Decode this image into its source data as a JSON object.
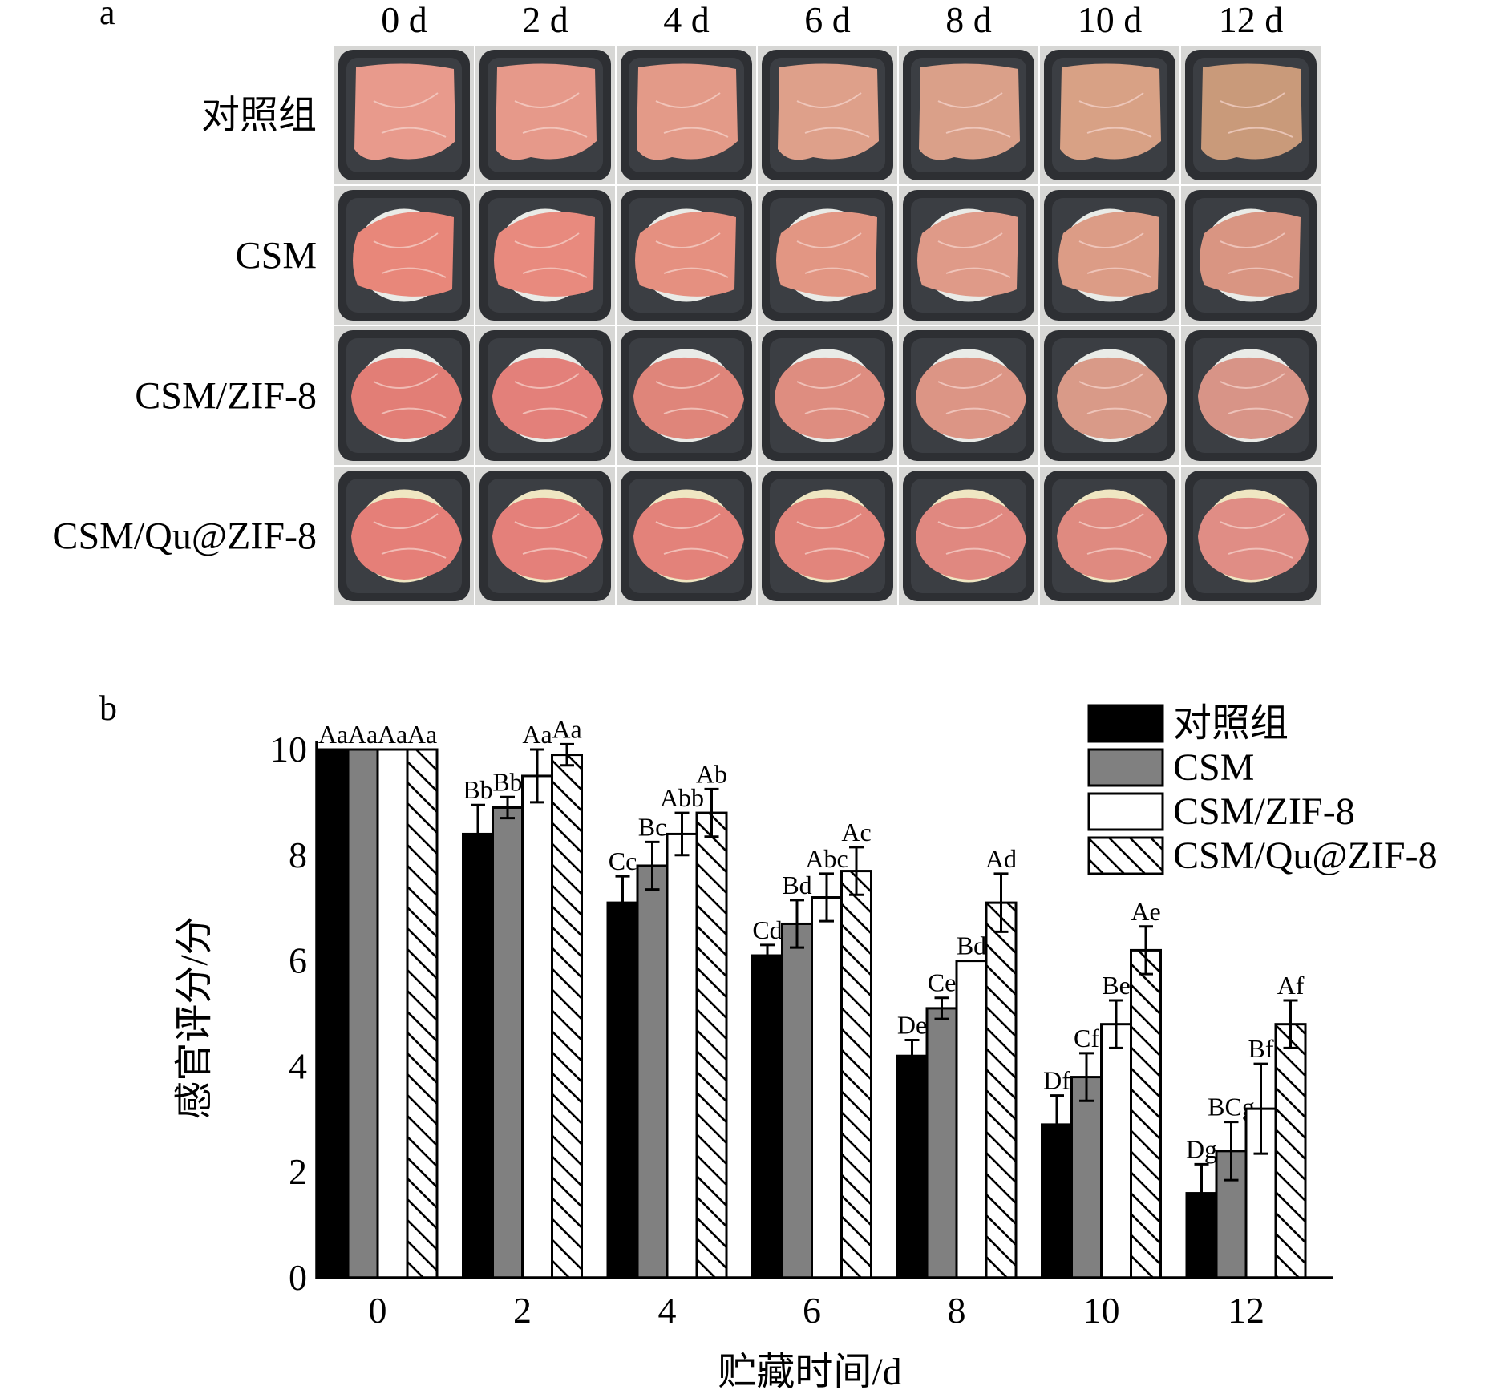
{
  "panel_a": {
    "label": "a",
    "columns": [
      "0 d",
      "2 d",
      "4 d",
      "6 d",
      "8 d",
      "10 d",
      "12 d"
    ],
    "rows": [
      "对照组",
      "CSM",
      "CSM/ZIF-8",
      "CSM/Qu@ZIF-8"
    ],
    "meat_colors": [
      [
        "#e89a8c",
        "#e6998a",
        "#e39a88",
        "#dea08a",
        "#daa089",
        "#d8a185",
        "#c99a7a"
      ],
      [
        "#e8877a",
        "#e88a7e",
        "#e59080",
        "#e29683",
        "#df9a88",
        "#dc9c86",
        "#d99582"
      ],
      [
        "#e27e76",
        "#e3807a",
        "#df857a",
        "#de8d80",
        "#dc9585",
        "#d99a88",
        "#d89487"
      ],
      [
        "#e57f78",
        "#e4807a",
        "#e3827a",
        "#e2857c",
        "#e08880",
        "#df8a80",
        "#e08d85"
      ]
    ]
  },
  "chart_data": {
    "panel_label": "b",
    "type": "bar",
    "title": "",
    "xlabel": "贮藏时间/d",
    "ylabel": "感官评分/分",
    "categories": [
      "0",
      "2",
      "4",
      "6",
      "8",
      "10",
      "12"
    ],
    "ylim": [
      0,
      10
    ],
    "yticks": [
      "0",
      "2",
      "4",
      "6",
      "8",
      "10"
    ],
    "legend_position": "top-right",
    "series": [
      {
        "name": "对照组",
        "fill": "#000000",
        "pattern": "solid",
        "values": [
          10,
          8.4,
          7.1,
          6.1,
          4.2,
          2.9,
          1.6
        ],
        "errors": [
          0,
          0.55,
          0.5,
          0.2,
          0.3,
          0.55,
          0.55
        ],
        "labels": [
          "Aa",
          "Bb",
          "Cc",
          "Cd",
          "De",
          "Df",
          "Dg"
        ]
      },
      {
        "name": "CSM",
        "fill": "#808080",
        "pattern": "solid",
        "values": [
          10,
          8.9,
          7.8,
          6.7,
          5.1,
          3.8,
          2.4
        ],
        "errors": [
          0,
          0.2,
          0.45,
          0.45,
          0.2,
          0.45,
          0.55
        ],
        "labels": [
          "Aa",
          "Bb",
          "Bc",
          "Bd",
          "Ce",
          "Cf",
          "BCg"
        ]
      },
      {
        "name": "CSM/ZIF-8",
        "fill": "#ffffff",
        "pattern": "solid",
        "values": [
          10,
          9.5,
          8.4,
          7.2,
          6.0,
          4.8,
          3.2
        ],
        "errors": [
          0,
          0.5,
          0.4,
          0.45,
          0,
          0.45,
          0.85
        ],
        "labels": [
          "Aa",
          "Aa",
          "Abb",
          "Abc",
          "Bd",
          "Be",
          "Bf"
        ]
      },
      {
        "name": "CSM/Qu@ZIF-8",
        "fill": "#ffffff",
        "pattern": "hatch",
        "values": [
          10,
          9.9,
          8.8,
          7.7,
          7.1,
          6.2,
          4.8
        ],
        "errors": [
          0,
          0.2,
          0.45,
          0.45,
          0.55,
          0.45,
          0.45
        ],
        "labels": [
          "Aa",
          "Aa",
          "Ab",
          "Ac",
          "Ad",
          "Ae",
          "Af"
        ]
      }
    ]
  }
}
